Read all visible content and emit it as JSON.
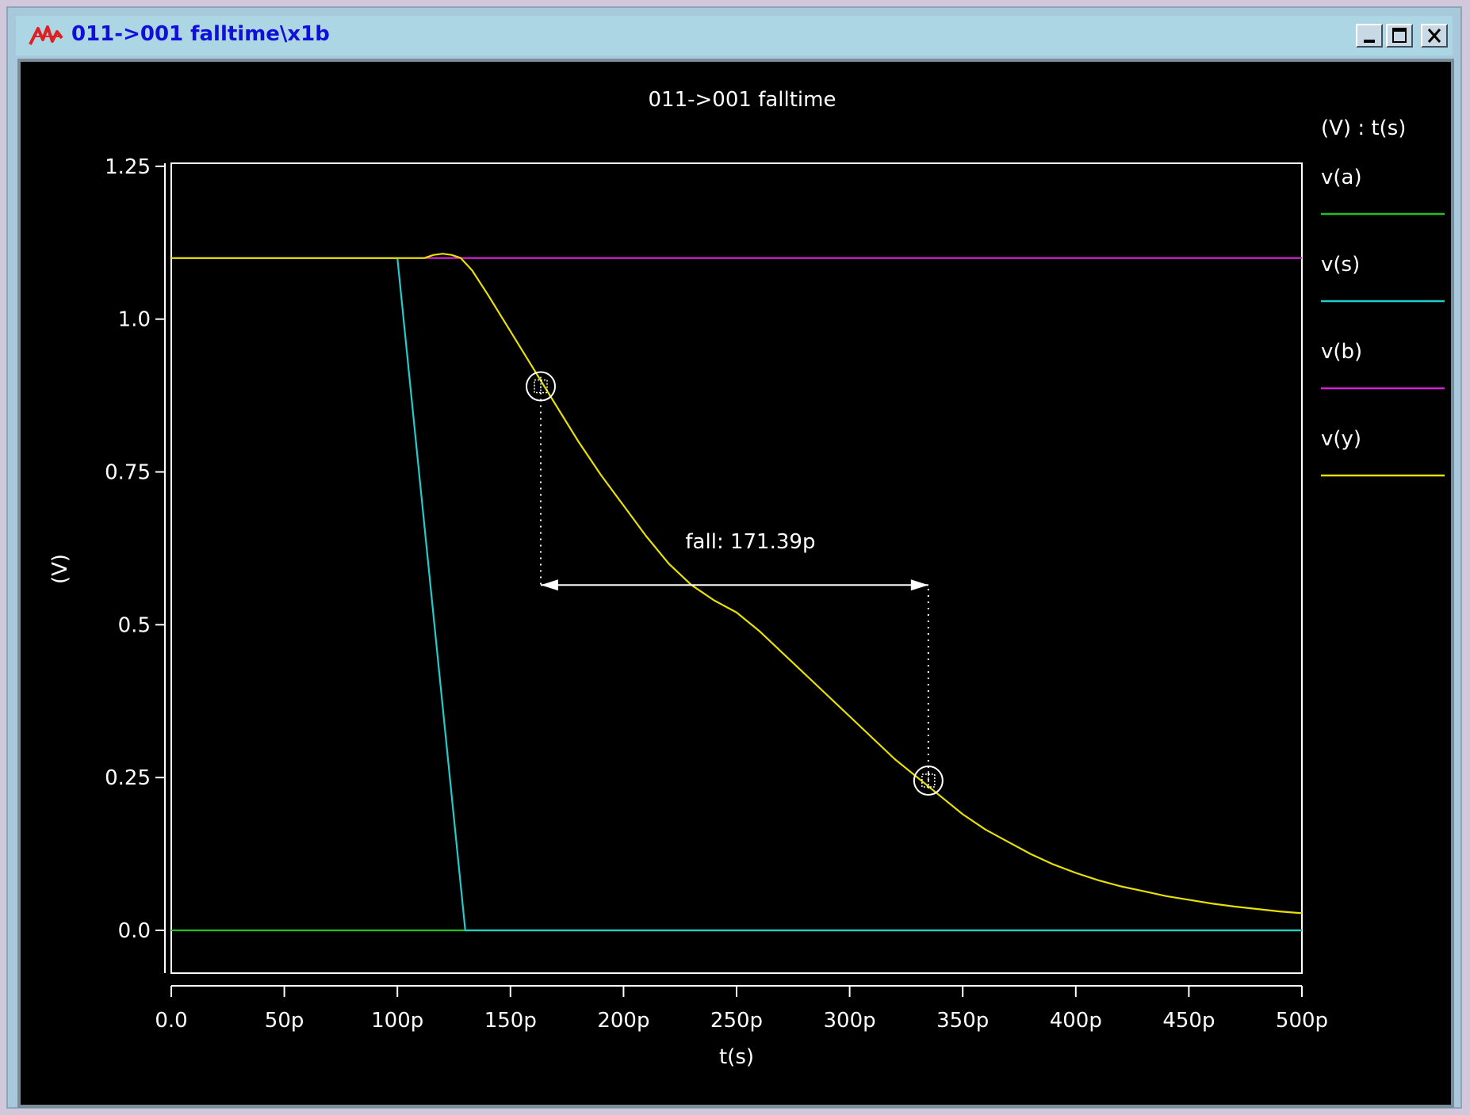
{
  "window": {
    "title": "011->001 falltime\\x1b",
    "buttons": [
      "minimize",
      "maximize",
      "close"
    ],
    "icon": "analog-waveform-icon"
  },
  "colors": {
    "background": "#000000",
    "axis": "#ffffff",
    "v_a": "#22c022",
    "v_s": "#22cccc",
    "v_b": "#d820d8",
    "v_y": "#e8e000"
  },
  "chart_data": {
    "type": "line",
    "title": "011->001 falltime",
    "xlabel": "t(s)",
    "ylabel": "(V)",
    "legend_header": "(V) : t(s)",
    "legend_position": "right",
    "xlim": [
      0,
      500
    ],
    "ylim": [
      -0.07,
      1.255
    ],
    "x_unit": "p",
    "xticks": [
      0,
      50,
      100,
      150,
      200,
      250,
      300,
      350,
      400,
      450,
      500
    ],
    "xtick_labels": [
      "0.0",
      "50p",
      "100p",
      "150p",
      "200p",
      "250p",
      "300p",
      "350p",
      "400p",
      "450p",
      "500p"
    ],
    "yticks": [
      0,
      0.25,
      0.5,
      0.75,
      1.0,
      1.25
    ],
    "ytick_labels": [
      "0.0",
      "0.25",
      "0.5",
      "0.75",
      "1.0",
      "1.25"
    ],
    "grid": false,
    "series": [
      {
        "name": "v(a)",
        "color": "#22c022",
        "points": [
          [
            0,
            0
          ],
          [
            500,
            0
          ]
        ]
      },
      {
        "name": "v(s)",
        "color": "#22cccc",
        "points": [
          [
            0,
            1.1
          ],
          [
            100,
            1.1
          ],
          [
            130,
            0
          ],
          [
            500,
            0
          ]
        ]
      },
      {
        "name": "v(b)",
        "color": "#d820d8",
        "points": [
          [
            0,
            1.1
          ],
          [
            500,
            1.1
          ]
        ]
      },
      {
        "name": "v(y)",
        "color": "#e8e000",
        "points": [
          [
            0,
            1.1
          ],
          [
            112,
            1.1
          ],
          [
            116,
            1.105
          ],
          [
            120,
            1.107
          ],
          [
            124,
            1.105
          ],
          [
            128,
            1.1
          ],
          [
            133,
            1.08
          ],
          [
            140,
            1.04
          ],
          [
            150,
            0.98
          ],
          [
            160,
            0.92
          ],
          [
            170,
            0.86
          ],
          [
            180,
            0.8
          ],
          [
            190,
            0.745
          ],
          [
            200,
            0.695
          ],
          [
            210,
            0.645
          ],
          [
            220,
            0.6
          ],
          [
            230,
            0.565
          ],
          [
            240,
            0.54
          ],
          [
            250,
            0.52
          ],
          [
            260,
            0.49
          ],
          [
            270,
            0.455
          ],
          [
            280,
            0.42
          ],
          [
            290,
            0.385
          ],
          [
            300,
            0.35
          ],
          [
            310,
            0.315
          ],
          [
            320,
            0.28
          ],
          [
            330,
            0.25
          ],
          [
            340,
            0.22
          ],
          [
            350,
            0.19
          ],
          [
            360,
            0.165
          ],
          [
            370,
            0.145
          ],
          [
            380,
            0.125
          ],
          [
            390,
            0.108
          ],
          [
            400,
            0.094
          ],
          [
            410,
            0.082
          ],
          [
            420,
            0.072
          ],
          [
            430,
            0.064
          ],
          [
            440,
            0.056
          ],
          [
            450,
            0.05
          ],
          [
            460,
            0.044
          ],
          [
            470,
            0.039
          ],
          [
            480,
            0.035
          ],
          [
            490,
            0.031
          ],
          [
            500,
            0.028
          ]
        ]
      }
    ],
    "annotations": [
      {
        "type": "measurement",
        "label": "fall: 171.39p",
        "x_start": 163.4,
        "x_end": 334.8,
        "y": 0.565
      },
      {
        "type": "marker",
        "x": 163.4,
        "y": 0.89
      },
      {
        "type": "marker",
        "x": 334.8,
        "y": 0.245
      }
    ]
  }
}
